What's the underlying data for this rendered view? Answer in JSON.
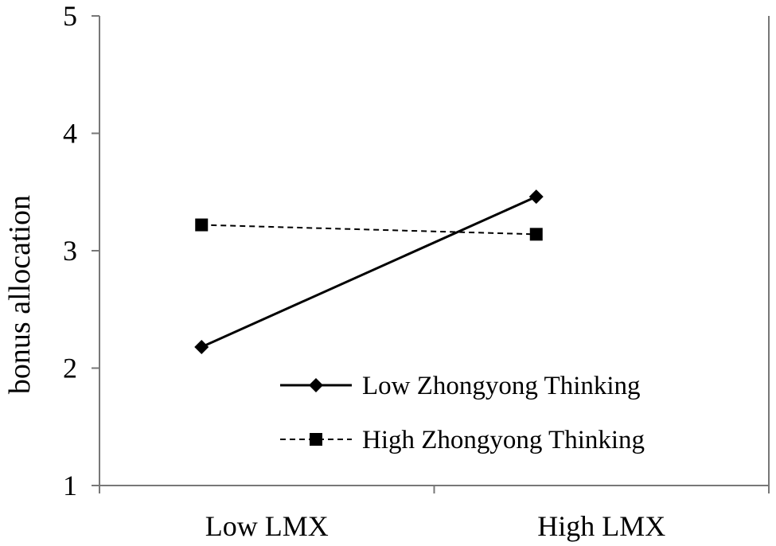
{
  "chart_data": {
    "type": "line",
    "title": "",
    "xlabel": "",
    "ylabel": "bonus allocation",
    "categories": [
      "Low LMX",
      "High LMX"
    ],
    "ylim": [
      1,
      5
    ],
    "yticks": [
      "1",
      "2",
      "3",
      "4",
      "5"
    ],
    "grid": false,
    "legend_position": "bottom-right",
    "series": [
      {
        "name": "Low Zhongyong Thinking",
        "values": [
          2.18,
          3.46
        ],
        "marker": "diamond",
        "line": "solid",
        "color": "#000000"
      },
      {
        "name": "High Zhongyong Thinking",
        "values": [
          3.22,
          3.14
        ],
        "marker": "square",
        "line": "dashed",
        "color": "#000000"
      }
    ]
  }
}
